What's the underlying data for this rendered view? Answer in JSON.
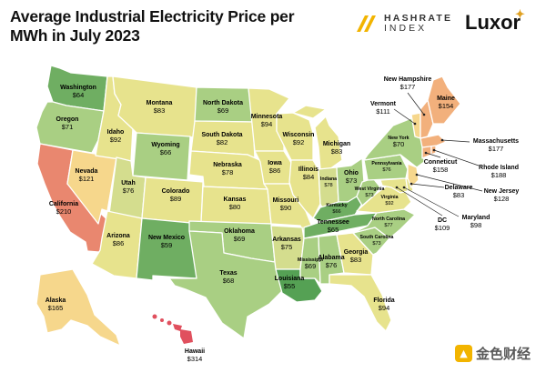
{
  "header": {
    "title_line1": "Average Industrial Electricity Price per",
    "title_line2": "MWh in July 2023"
  },
  "logos": {
    "hashrate_line1": "HASHRATE",
    "hashrate_line2": "INDEX",
    "luxor": "Luxor",
    "hashrate_color": "#f2b400",
    "hashrate_icon": "hashrate-logo-icon",
    "luxor_icon": "sun-icon"
  },
  "watermark": {
    "text": "金色财经",
    "icon": "jinse-logo-icon"
  },
  "legend_colors": {
    "low": "#6fae62",
    "midlow": "#a9cf83",
    "mid": "#e7e38d",
    "midhigh": "#f6d78c",
    "high": "#f2b07c",
    "very_high": "#e9876f",
    "extreme": "#e0505e"
  },
  "states": {
    "WA": {
      "name": "Washington",
      "price": "$64"
    },
    "OR": {
      "name": "Oregon",
      "price": "$71"
    },
    "CA": {
      "name": "California",
      "price": "$210"
    },
    "NV": {
      "name": "Nevada",
      "price": "$121"
    },
    "ID": {
      "name": "Idaho",
      "price": "$92"
    },
    "MT": {
      "name": "Montana",
      "price": "$83"
    },
    "WY": {
      "name": "Wyoming",
      "price": "$66"
    },
    "UT": {
      "name": "Utah",
      "price": "$76"
    },
    "AZ": {
      "name": "Arizona",
      "price": "$86"
    },
    "CO": {
      "name": "Colorado",
      "price": "$89"
    },
    "NM": {
      "name": "New Mexico",
      "price": "$59"
    },
    "ND": {
      "name": "North Dakota",
      "price": "$69"
    },
    "SD": {
      "name": "South Dakota",
      "price": "$82"
    },
    "NE": {
      "name": "Nebraska",
      "price": "$78"
    },
    "KS": {
      "name": "Kansas",
      "price": "$80"
    },
    "OK": {
      "name": "Oklahoma",
      "price": "$69"
    },
    "TX": {
      "name": "Texas",
      "price": "$68"
    },
    "MN": {
      "name": "Minnesota",
      "price": "$94"
    },
    "IA": {
      "name": "Iowa",
      "price": "$86"
    },
    "MO": {
      "name": "Missouri",
      "price": "$90"
    },
    "AR": {
      "name": "Arkansas",
      "price": "$75"
    },
    "LA": {
      "name": "Louisiana",
      "price": "$55"
    },
    "WI": {
      "name": "Wisconsin",
      "price": "$92"
    },
    "IL": {
      "name": "Illinois",
      "price": "$84"
    },
    "MI": {
      "name": "Michigan",
      "price": "$83"
    },
    "IN": {
      "name": "Indiana",
      "price": "$78"
    },
    "OH": {
      "name": "Ohio",
      "price": "$73"
    },
    "KY": {
      "name": "Kentucky",
      "price": "$66"
    },
    "TN": {
      "name": "Tennessee",
      "price": "$65"
    },
    "MS": {
      "name": "Mississippi",
      "price": "$69"
    },
    "AL": {
      "name": "Alabama",
      "price": "$76"
    },
    "GA": {
      "name": "Georgia",
      "price": "$83"
    },
    "FL": {
      "name": "Florida",
      "price": "$94"
    },
    "SC": {
      "name": "South Carolina",
      "price": "$73"
    },
    "NC": {
      "name": "North Carolina",
      "price": "$77"
    },
    "VA": {
      "name": "Virginia",
      "price": "$92"
    },
    "WV": {
      "name": "West Virginia",
      "price": "$73"
    },
    "PA": {
      "name": "Pennsylvania",
      "price": "$76"
    },
    "NY": {
      "name": "New York",
      "price": "$70"
    },
    "ME": {
      "name": "Maine",
      "price": "$154"
    },
    "NH": {
      "name": "New Hampshire",
      "price": "$177"
    },
    "VT": {
      "name": "Vermont",
      "price": "$111"
    },
    "MA": {
      "name": "Massachusetts",
      "price": "$177"
    },
    "RI": {
      "name": "Rhode Island",
      "price": "$188"
    },
    "CT": {
      "name": "Conneticut",
      "price": "$158"
    },
    "NJ": {
      "name": "New Jersey",
      "price": "$128"
    },
    "DE": {
      "name": "Delaware",
      "price": "$83"
    },
    "MD": {
      "name": "Maryland",
      "price": "$98"
    },
    "DC": {
      "name": "DC",
      "price": "$109"
    },
    "AK": {
      "name": "Alaska",
      "price": "$165"
    },
    "HI": {
      "name": "Hawaii",
      "price": "$314"
    }
  }
}
